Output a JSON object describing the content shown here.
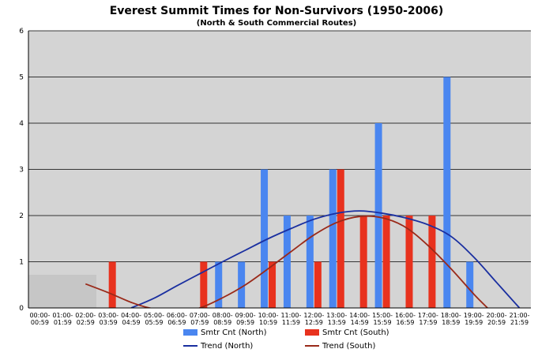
{
  "chart_data": {
    "type": "bar",
    "title": "Everest Summit Times for Non-Survivors (1950-2006)",
    "subtitle": "(North & South Commercial Routes)",
    "categories": [
      [
        "00:00-",
        "00:59"
      ],
      [
        "01:00-",
        "01:59"
      ],
      [
        "02:00-",
        "02:59"
      ],
      [
        "03:00-",
        "03:59"
      ],
      [
        "04:00-",
        "04:59"
      ],
      [
        "05:00-",
        "05:59"
      ],
      [
        "06:00-",
        "06:59"
      ],
      [
        "07:00-",
        "07:59"
      ],
      [
        "08:00-",
        "08:59"
      ],
      [
        "09:00-",
        "09:59"
      ],
      [
        "10:00-",
        "10:59"
      ],
      [
        "11:00-",
        "11:59"
      ],
      [
        "12:00-",
        "12:59"
      ],
      [
        "13:00-",
        "13:59"
      ],
      [
        "14:00-",
        "14:59"
      ],
      [
        "15:00-",
        "15:59"
      ],
      [
        "16:00-",
        "16:59"
      ],
      [
        "17:00-",
        "17:59"
      ],
      [
        "18:00-",
        "18:59"
      ],
      [
        "19:00-",
        "19:59"
      ],
      [
        "20:00-",
        "20:59"
      ],
      [
        "21:00-",
        "21:59"
      ]
    ],
    "ylim": [
      0,
      6
    ],
    "yticks": [
      "0",
      "1",
      "2",
      "3",
      "4",
      "5",
      "6"
    ],
    "grid": true,
    "legend_position": "bottom",
    "series": [
      {
        "name": "Smtr Cnt (North)",
        "kind": "bar",
        "color": "#4A86F0",
        "values": [
          0,
          0,
          0,
          0,
          0,
          0,
          0,
          0,
          1,
          1,
          3,
          2,
          2,
          3,
          0,
          4,
          0,
          0,
          5,
          1,
          0,
          0
        ]
      },
      {
        "name": "Smtr Cnt (South)",
        "kind": "bar",
        "color": "#E8321E",
        "values": [
          0,
          0,
          0,
          1,
          0,
          0,
          0,
          1,
          0,
          0,
          1,
          0,
          1,
          3,
          2,
          2,
          2,
          2,
          0,
          0,
          0,
          0
        ]
      },
      {
        "name": "Trend (North)",
        "kind": "line",
        "color": "#1A2FA0",
        "points": [
          [
            4.5,
            0
          ],
          [
            5.5,
            0.21
          ],
          [
            6.5,
            0.48
          ],
          [
            7.5,
            0.74
          ],
          [
            8.5,
            1.0
          ],
          [
            9.5,
            1.25
          ],
          [
            10.5,
            1.5
          ],
          [
            11.5,
            1.72
          ],
          [
            12.5,
            1.92
          ],
          [
            13.5,
            2.05
          ],
          [
            14.5,
            2.1
          ],
          [
            15.5,
            2.05
          ],
          [
            16.5,
            1.95
          ],
          [
            17.5,
            1.8
          ],
          [
            18.5,
            1.55
          ],
          [
            19.5,
            1.1
          ],
          [
            20.5,
            0.55
          ],
          [
            21.5,
            0
          ]
        ]
      },
      {
        "name": "Trend (South)",
        "kind": "line",
        "color": "#9A2A1A",
        "points": [
          [
            2.5,
            0.52
          ],
          [
            3.5,
            0.33
          ],
          [
            4.5,
            0.12
          ],
          [
            5.3,
            0
          ],
          [
            6.5,
            -0.08
          ],
          [
            7.5,
            0
          ],
          [
            8.5,
            0.22
          ],
          [
            9.5,
            0.5
          ],
          [
            10.5,
            0.85
          ],
          [
            11.5,
            1.22
          ],
          [
            12.5,
            1.58
          ],
          [
            13.5,
            1.85
          ],
          [
            14.5,
            1.98
          ],
          [
            15.5,
            1.95
          ],
          [
            16.5,
            1.75
          ],
          [
            17.5,
            1.35
          ],
          [
            18.5,
            0.85
          ],
          [
            19.5,
            0.3
          ],
          [
            20.1,
            0
          ]
        ]
      }
    ]
  }
}
